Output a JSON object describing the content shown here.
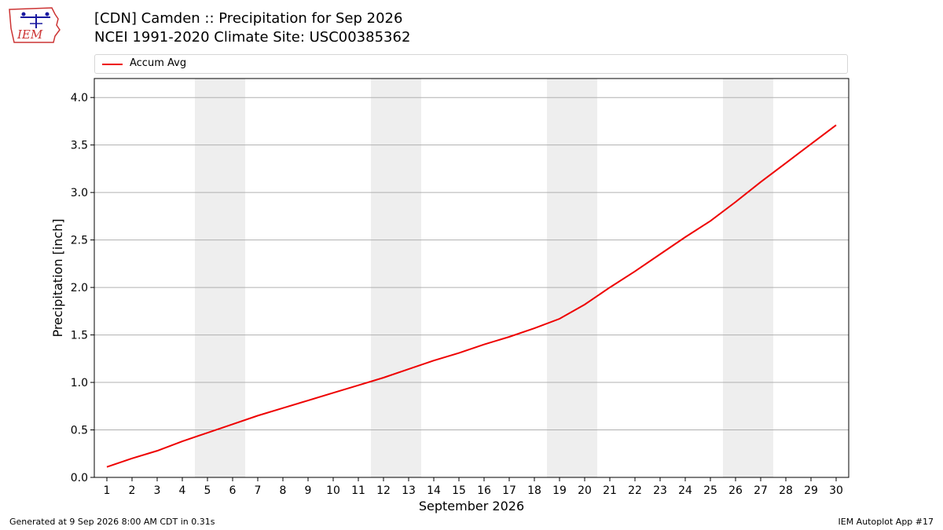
{
  "header": {
    "title": "[CDN] Camden :: Precipitation for Sep 2026",
    "subtitle": "NCEI 1991-2020 Climate Site: USC00385362",
    "logo_text": "IEM"
  },
  "footer": {
    "generated": "Generated at 9 Sep 2026 8:00 AM CDT in 0.31s",
    "app": "IEM Autoplot App #17"
  },
  "colors": {
    "series": "#ee0000",
    "weekend_band": "#eeeeee",
    "grid": "#b0b0b0",
    "logo_red": "#cc3333",
    "logo_blue": "#1a1aa0"
  },
  "chart_data": {
    "type": "line",
    "title": "[CDN] Camden :: Precipitation for Sep 2026",
    "xlabel": "September 2026",
    "ylabel": "Precipitation [inch]",
    "xlim": [
      0.5,
      30.5
    ],
    "ylim": [
      0,
      4.2
    ],
    "yticks": [
      0.0,
      0.5,
      1.0,
      1.5,
      2.0,
      2.5,
      3.0,
      3.5,
      4.0
    ],
    "ytick_labels": [
      "0.0",
      "0.5",
      "1.0",
      "1.5",
      "2.0",
      "2.5",
      "3.0",
      "3.5",
      "4.0"
    ],
    "xticks": [
      1,
      2,
      3,
      4,
      5,
      6,
      7,
      8,
      9,
      10,
      11,
      12,
      13,
      14,
      15,
      16,
      17,
      18,
      19,
      20,
      21,
      22,
      23,
      24,
      25,
      26,
      27,
      28,
      29,
      30
    ],
    "grid": "horizontal",
    "legend": {
      "placement": "top",
      "entries": [
        "Accum Avg"
      ]
    },
    "shaded_days": [
      [
        5,
        6
      ],
      [
        12,
        13
      ],
      [
        19,
        20
      ],
      [
        26,
        27
      ]
    ],
    "series": [
      {
        "name": "Accum Avg",
        "x": [
          1,
          2,
          3,
          4,
          5,
          6,
          7,
          8,
          9,
          10,
          11,
          12,
          13,
          14,
          15,
          16,
          17,
          18,
          19,
          20,
          21,
          22,
          23,
          24,
          25,
          26,
          27,
          28,
          29,
          30
        ],
        "values": [
          0.11,
          0.2,
          0.28,
          0.38,
          0.47,
          0.56,
          0.65,
          0.73,
          0.81,
          0.89,
          0.97,
          1.05,
          1.14,
          1.23,
          1.31,
          1.4,
          1.48,
          1.57,
          1.67,
          1.82,
          2.0,
          2.17,
          2.35,
          2.53,
          2.7,
          2.9,
          3.11,
          3.31,
          3.51,
          3.71
        ]
      }
    ]
  }
}
